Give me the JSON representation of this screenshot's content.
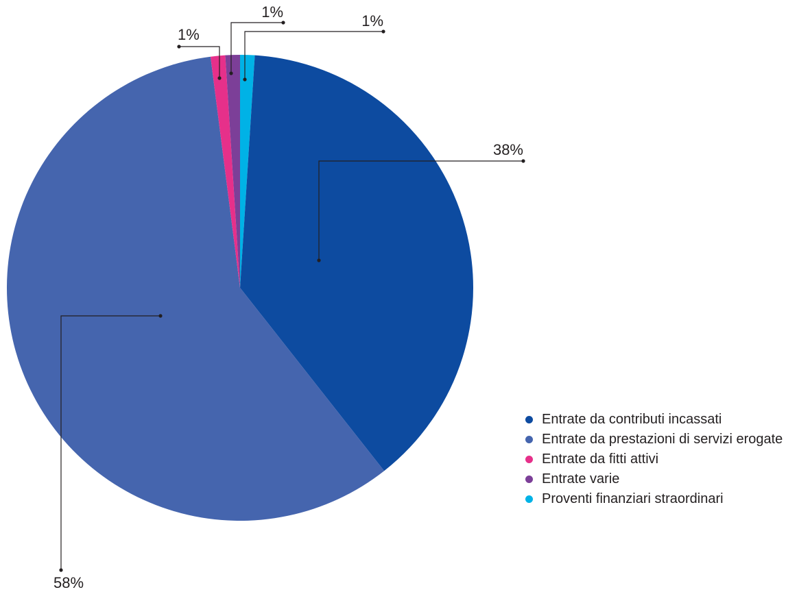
{
  "chart_data": {
    "type": "pie",
    "title": "",
    "slices": [
      {
        "name": "Entrate da contributi incassati",
        "value": 38,
        "label": "38%",
        "color": "#0d4ba0"
      },
      {
        "name": "Entrate da prestazioni di servizi erogate",
        "value": 58,
        "label": "58%",
        "color": "#4565ae"
      },
      {
        "name": "Entrate da fitti attivi",
        "value": 1,
        "label": "1%",
        "color": "#e6308a"
      },
      {
        "name": "Entrate varie",
        "value": 1,
        "label": "1%",
        "color": "#7c3f98"
      },
      {
        "name": "Proventi finanziari straordinari",
        "value": 1,
        "label": "1%",
        "color": "#00b2e6"
      }
    ],
    "legend_position": "bottom-right"
  }
}
